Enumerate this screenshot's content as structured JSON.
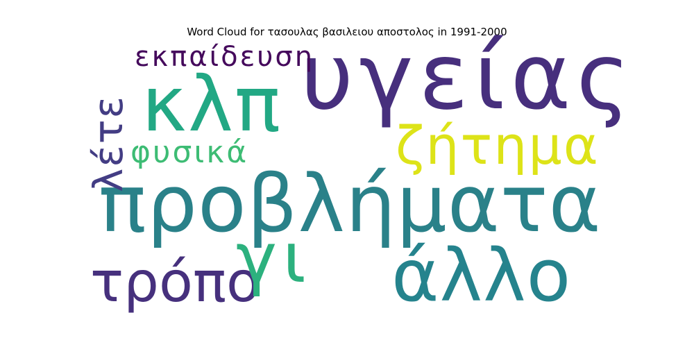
{
  "title": "Word Cloud for τασουλας βασιλειου αποστολος in 1991-2000",
  "words": [
    {
      "text": "προβλήματα",
      "color": "#2a8189"
    },
    {
      "text": "υγείας",
      "color": "#472f7d"
    },
    {
      "text": "κλπ",
      "color": "#22a884"
    },
    {
      "text": "άλλο",
      "color": "#25838d"
    },
    {
      "text": "τρόπο",
      "color": "#46307d"
    },
    {
      "text": "γι",
      "color": "#2cb17e"
    },
    {
      "text": "ζήτημα",
      "color": "#dde318"
    },
    {
      "text": "εκπαίδευση",
      "color": "#450a5c"
    },
    {
      "text": "φυσικά",
      "color": "#3dbc74"
    },
    {
      "text": "λέτε",
      "color": "#433d84"
    }
  ]
}
